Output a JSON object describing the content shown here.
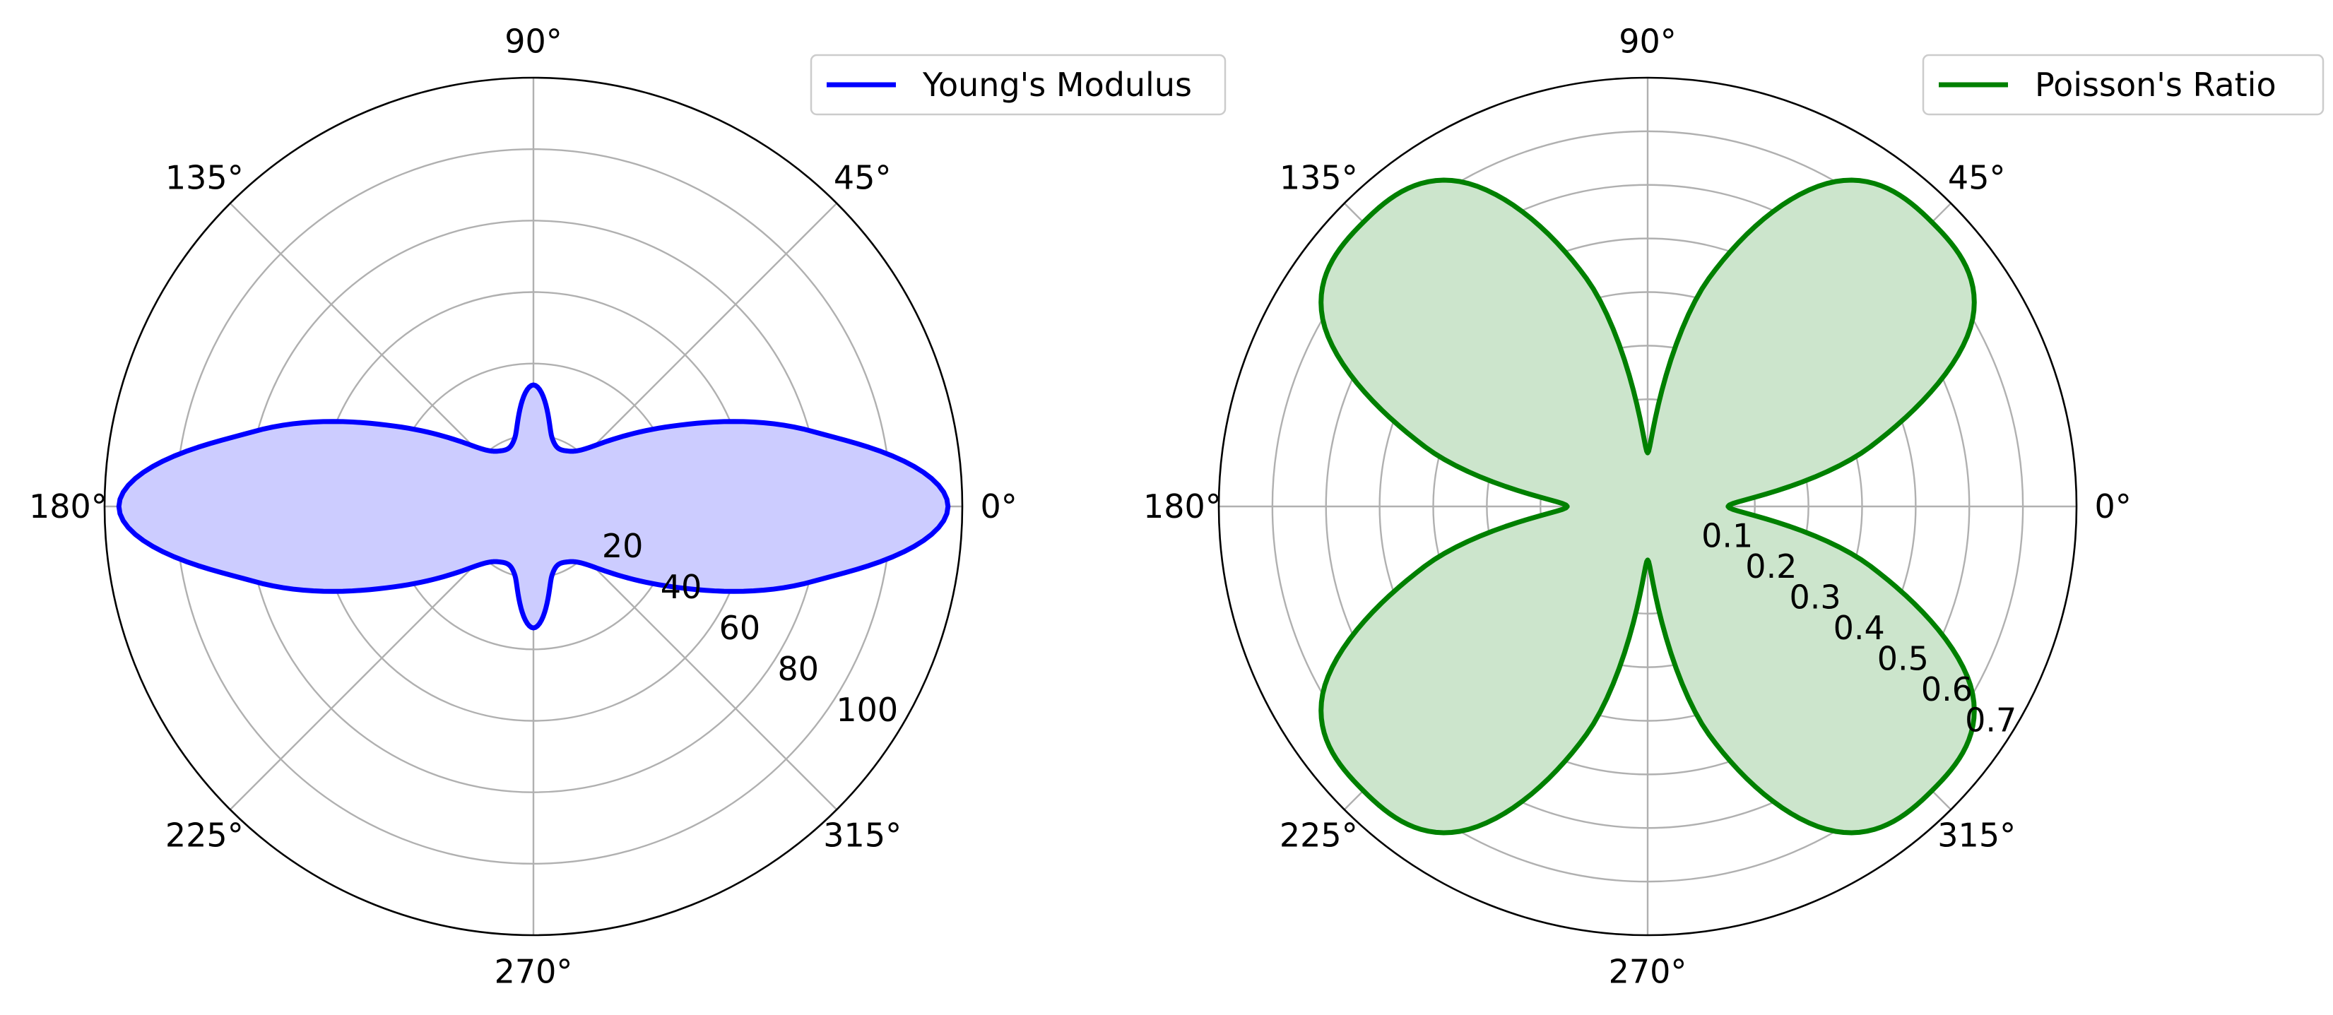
{
  "chart_data": [
    {
      "type": "polar-area",
      "title": "",
      "series": [
        {
          "name": "Young's Modulus",
          "color": "#0000ff",
          "fill_color": "#ccccff",
          "theta_deg": [
            0,
            15,
            30,
            45,
            60,
            75,
            90,
            105,
            120,
            135,
            150,
            165,
            180,
            195,
            210,
            225,
            240,
            255,
            270,
            285,
            300,
            315,
            330,
            345,
            360
          ],
          "r": [
            116,
            81,
            45,
            24,
            18,
            20,
            34,
            20,
            18,
            24,
            45,
            81,
            116,
            81,
            45,
            24,
            18,
            20,
            34,
            20,
            18,
            24,
            45,
            81,
            116
          ]
        }
      ],
      "r_ticks": [
        "20",
        "40",
        "60",
        "80",
        "100"
      ],
      "r_tick_values": [
        20,
        40,
        60,
        80,
        100
      ],
      "rlim": [
        0,
        120
      ],
      "theta_ticks": [
        "0°",
        "45°",
        "90°",
        "135°",
        "180°",
        "225°",
        "270°",
        "315°"
      ],
      "theta_tick_values": [
        0,
        45,
        90,
        135,
        180,
        225,
        270,
        315
      ],
      "r_label_angle_deg": 325,
      "grid": true,
      "legend_position": "top-right"
    },
    {
      "type": "polar-area",
      "title": "",
      "series": [
        {
          "name": "Poisson's Ratio",
          "color": "#008000",
          "fill_color": "#cce5cc",
          "theta_deg": [
            0,
            15,
            30,
            45,
            60,
            75,
            90,
            105,
            120,
            135,
            150,
            165,
            180,
            195,
            210,
            225,
            240,
            255,
            270,
            285,
            300,
            315,
            330,
            345,
            360
          ],
          "r": [
            0.15,
            0.43,
            0.7,
            0.75,
            0.7,
            0.44,
            0.1,
            0.44,
            0.7,
            0.75,
            0.7,
            0.43,
            0.15,
            0.43,
            0.7,
            0.75,
            0.7,
            0.44,
            0.1,
            0.44,
            0.7,
            0.75,
            0.7,
            0.43,
            0.15
          ]
        }
      ],
      "r_ticks": [
        "0.1",
        "0.2",
        "0.3",
        "0.4",
        "0.5",
        "0.6",
        "0.7"
      ],
      "r_tick_values": [
        0.1,
        0.2,
        0.3,
        0.4,
        0.5,
        0.6,
        0.7
      ],
      "rlim": [
        0,
        0.8
      ],
      "theta_ticks": [
        "0°",
        "45°",
        "90°",
        "135°",
        "180°",
        "225°",
        "270°",
        "315°"
      ],
      "theta_tick_values": [
        0,
        45,
        90,
        135,
        180,
        225,
        270,
        315
      ],
      "r_label_angle_deg": 325,
      "grid": true,
      "legend_position": "top-right"
    }
  ]
}
